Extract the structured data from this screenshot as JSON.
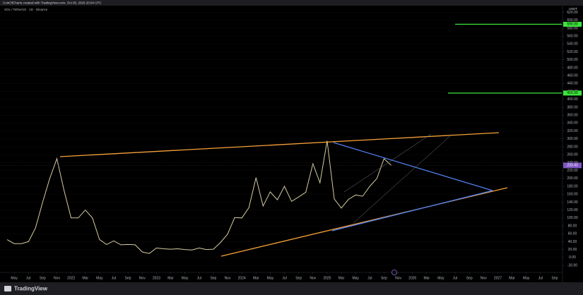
{
  "header": {
    "watermark": "CoinOfCharts created with TradingView.com, Oct 05, 2025 20:04 UTC",
    "brand": "TradingView"
  },
  "chart_data": {
    "type": "line",
    "title": "SOL / TetherUS · 1D · Binance",
    "y_unit": "USDT",
    "series": [
      {
        "name": "SOL / TetherUS",
        "color": "#d6cba0",
        "x": [
          "2021-04",
          "2021-05",
          "2021-06",
          "2021-07",
          "2021-08",
          "2021-09",
          "2021-10",
          "2021-11",
          "2021-12",
          "2022-01",
          "2022-02",
          "2022-03",
          "2022-04",
          "2022-05",
          "2022-06",
          "2022-07",
          "2022-08",
          "2022-09",
          "2022-10",
          "2022-11",
          "2022-12",
          "2023-01",
          "2023-02",
          "2023-03",
          "2023-04",
          "2023-05",
          "2023-06",
          "2023-07",
          "2023-08",
          "2023-09",
          "2023-10",
          "2023-11",
          "2023-12",
          "2024-01",
          "2024-02",
          "2024-03",
          "2024-04",
          "2024-05",
          "2024-06",
          "2024-07",
          "2024-08",
          "2024-09",
          "2024-10",
          "2024-11",
          "2024-12",
          "2025-01",
          "2025-02",
          "2025-03",
          "2025-04",
          "2025-05",
          "2025-06",
          "2025-07",
          "2025-08",
          "2025-09",
          "2025-10"
        ],
        "values": [
          45,
          35,
          35,
          40,
          75,
          140,
          200,
          250,
          170,
          100,
          100,
          120,
          100,
          45,
          33,
          42,
          32,
          33,
          32,
          14,
          10,
          24,
          22,
          21,
          22,
          20,
          19,
          24,
          20,
          21,
          38,
          59,
          101,
          100,
          126,
          202,
          130,
          166,
          146,
          180,
          142,
          153,
          165,
          237,
          189,
          295,
          148,
          125,
          147,
          158,
          155,
          180,
          200,
          250,
          233
        ]
      }
    ],
    "xlim": [
      "2021-03",
      "2027-10"
    ],
    "xticks": [
      {
        "value": "2021-05",
        "label": "May"
      },
      {
        "value": "2021-07",
        "label": "Jul"
      },
      {
        "value": "2021-09",
        "label": "Sep"
      },
      {
        "value": "2021-11",
        "label": "Nov"
      },
      {
        "value": "2022-01",
        "label": "2022"
      },
      {
        "value": "2022-03",
        "label": "Mar"
      },
      {
        "value": "2022-05",
        "label": "May"
      },
      {
        "value": "2022-07",
        "label": "Jul"
      },
      {
        "value": "2022-09",
        "label": "Sep"
      },
      {
        "value": "2022-11",
        "label": "Nov"
      },
      {
        "value": "2023-01",
        "label": "2023"
      },
      {
        "value": "2023-03",
        "label": "Mar"
      },
      {
        "value": "2023-05",
        "label": "May"
      },
      {
        "value": "2023-07",
        "label": "Jul"
      },
      {
        "value": "2023-09",
        "label": "Sep"
      },
      {
        "value": "2023-11",
        "label": "Nov"
      },
      {
        "value": "2024-01",
        "label": "2024"
      },
      {
        "value": "2024-03",
        "label": "Mar"
      },
      {
        "value": "2024-05",
        "label": "May"
      },
      {
        "value": "2024-07",
        "label": "Jul"
      },
      {
        "value": "2024-09",
        "label": "Sep"
      },
      {
        "value": "2024-11",
        "label": "Nov"
      },
      {
        "value": "2025-01",
        "label": "2025"
      },
      {
        "value": "2025-03",
        "label": "Mar"
      },
      {
        "value": "2025-05",
        "label": "May"
      },
      {
        "value": "2025-07",
        "label": "Jul"
      },
      {
        "value": "2025-09",
        "label": "Sep"
      },
      {
        "value": "2025-11",
        "label": "Nov"
      },
      {
        "value": "2026-01",
        "label": "2026"
      },
      {
        "value": "2026-03",
        "label": "Mar"
      },
      {
        "value": "2026-05",
        "label": "May"
      },
      {
        "value": "2026-07",
        "label": "Jul"
      },
      {
        "value": "2026-09",
        "label": "Sep"
      },
      {
        "value": "2026-11",
        "label": "Nov"
      },
      {
        "value": "2027-01",
        "label": "2027"
      },
      {
        "value": "2027-03",
        "label": "Mar"
      },
      {
        "value": "2027-05",
        "label": "May"
      },
      {
        "value": "2027-07",
        "label": "Jul"
      },
      {
        "value": "2027-09",
        "label": "Sep"
      }
    ],
    "ylim": [
      -36,
      630
    ],
    "yticks": [
      {
        "value": 620,
        "label": "620.00"
      },
      {
        "value": 600,
        "label": "600.00"
      },
      {
        "value": 580,
        "label": "580.00"
      },
      {
        "value": 560,
        "label": "560.00"
      },
      {
        "value": 540,
        "label": "540.00"
      },
      {
        "value": 520,
        "label": "520.00"
      },
      {
        "value": 500,
        "label": "500.00"
      },
      {
        "value": 480,
        "label": "480.00"
      },
      {
        "value": 460,
        "label": "460.00"
      },
      {
        "value": 440,
        "label": "440.00"
      },
      {
        "value": 420,
        "label": "420.00"
      },
      {
        "value": 400,
        "label": "400.00"
      },
      {
        "value": 380,
        "label": "380.00"
      },
      {
        "value": 360,
        "label": "360.00"
      },
      {
        "value": 340,
        "label": "340.00"
      },
      {
        "value": 320,
        "label": "320.00"
      },
      {
        "value": 300,
        "label": "300.00"
      },
      {
        "value": 280,
        "label": "280.00"
      },
      {
        "value": 260,
        "label": "260.00"
      },
      {
        "value": 240,
        "label": "240.00"
      },
      {
        "value": 220,
        "label": "220.00"
      },
      {
        "value": 200,
        "label": "200.00"
      },
      {
        "value": 180,
        "label": "180.00"
      },
      {
        "value": 160,
        "label": "160.00"
      },
      {
        "value": 140,
        "label": "140.00"
      },
      {
        "value": 120,
        "label": "120.00"
      },
      {
        "value": 100,
        "label": "100.00"
      },
      {
        "value": 80,
        "label": "80.00"
      },
      {
        "value": 60,
        "label": "60.00"
      },
      {
        "value": 40,
        "label": "40.00"
      },
      {
        "value": 20,
        "label": "20.00"
      },
      {
        "value": 0,
        "label": "0.00"
      },
      {
        "value": -20,
        "label": "-20.00"
      }
    ],
    "hlines": [
      {
        "value": 590,
        "label": "590.00",
        "color": "#3ce63c",
        "from": "2026-07"
      },
      {
        "value": 416,
        "label": "416.00",
        "color": "#3ce63c",
        "from": "2026-06"
      }
    ],
    "last_price": {
      "value": 233,
      "label": "233.43",
      "color": "#7e57c2"
    }
  }
}
